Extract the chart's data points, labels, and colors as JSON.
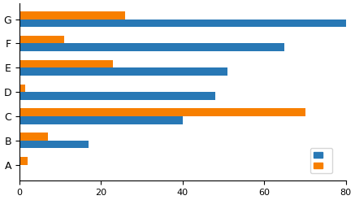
{
  "categories": [
    "A",
    "B",
    "C",
    "D",
    "E",
    "F",
    "G"
  ],
  "blue_values": [
    0,
    17,
    40,
    48,
    51,
    65,
    80
  ],
  "orange_values": [
    2,
    7,
    70,
    1.5,
    23,
    11,
    26
  ],
  "blue_color": "#2878b5",
  "orange_color": "#f77f00",
  "xlim": [
    0,
    80
  ],
  "xticks": [
    0,
    20,
    40,
    60,
    80
  ],
  "bar_height": 0.32,
  "figsize": [
    4.37,
    2.46
  ],
  "dpi": 100
}
